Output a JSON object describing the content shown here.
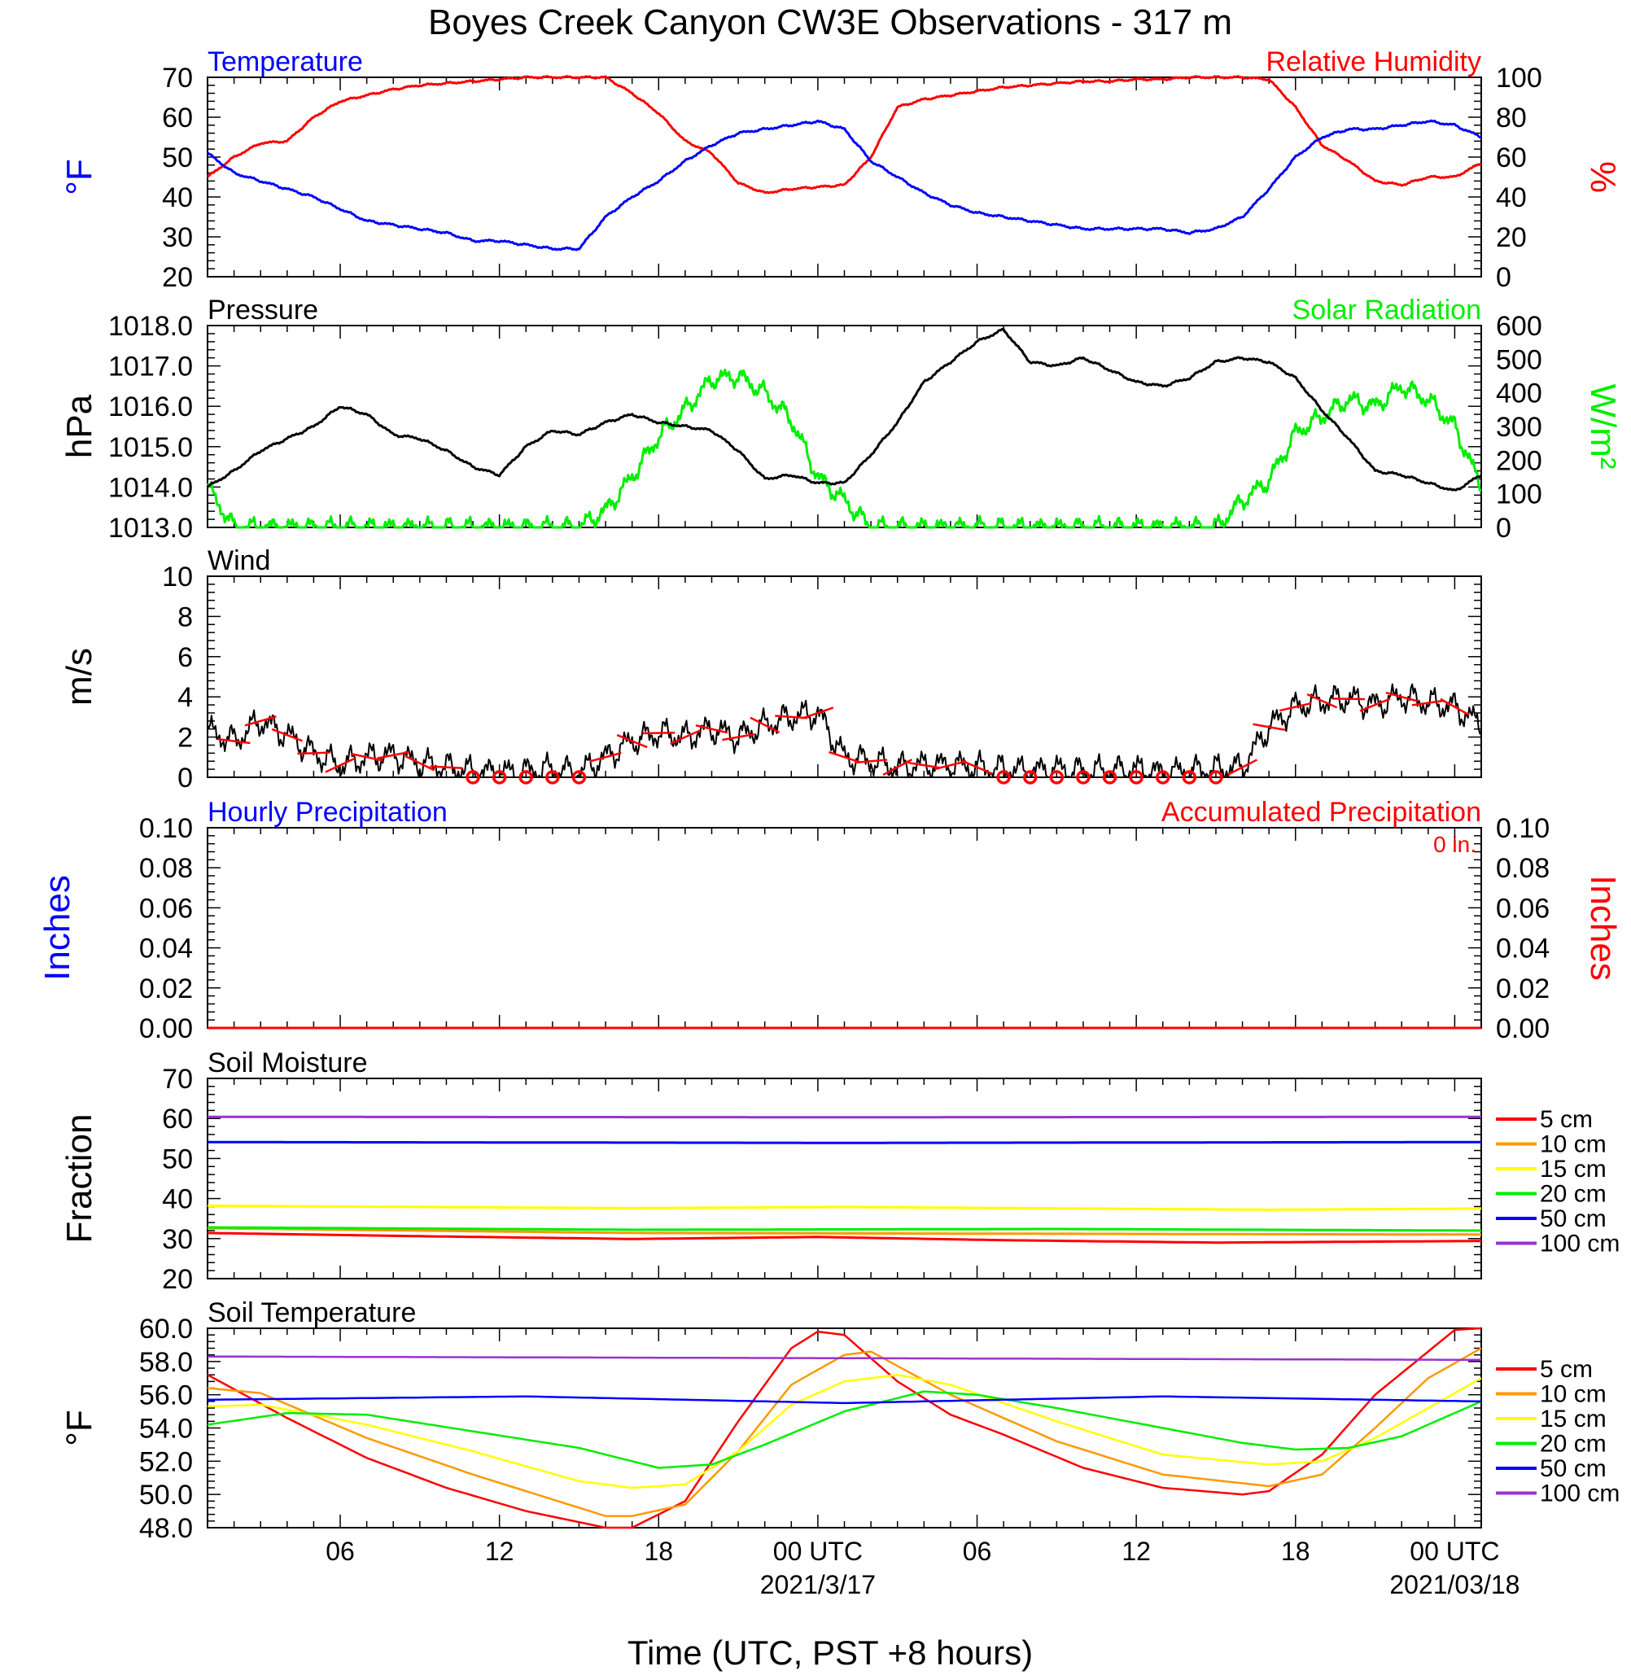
{
  "title": "Boyes Creek Canyon CW3E Observations - 317 m",
  "x_axis": {
    "label": "Time (UTC, PST +8 hours)",
    "range_hours": [
      0,
      48
    ],
    "ticks": [
      {
        "hours": 5,
        "label": "06",
        "date": ""
      },
      {
        "hours": 11,
        "label": "12",
        "date": ""
      },
      {
        "hours": 17,
        "label": "18",
        "date": ""
      },
      {
        "hours": 23,
        "label": "00 UTC",
        "date": "2021/3/17"
      },
      {
        "hours": 29,
        "label": "06",
        "date": ""
      },
      {
        "hours": 35,
        "label": "12",
        "date": ""
      },
      {
        "hours": 41,
        "label": "18",
        "date": ""
      },
      {
        "hours": 47,
        "label": "00 UTC",
        "date": "2021/03/18"
      }
    ]
  },
  "panels": {
    "temp_rh": {
      "left_title": "Temperature",
      "right_title": "Relative Humidity",
      "left_unit": "°F",
      "right_unit": "%",
      "left_ticks": [
        "70",
        "60",
        "50",
        "40",
        "30",
        "20"
      ],
      "right_ticks": [
        "100",
        "80",
        "60",
        "40",
        "20",
        "0"
      ]
    },
    "pressure_solar": {
      "left_title": "Pressure",
      "right_title": "Solar Radiation",
      "left_unit": "hPa",
      "right_unit": "W/m²",
      "left_ticks": [
        "1018.0",
        "1017.0",
        "1016.0",
        "1015.0",
        "1014.0",
        "1013.0"
      ],
      "right_ticks": [
        "600",
        "500",
        "400",
        "300",
        "200",
        "100",
        "0"
      ]
    },
    "wind": {
      "left_title": "Wind",
      "left_unit": "m/s",
      "left_ticks": [
        "10",
        "8",
        "6",
        "4",
        "2",
        "0"
      ]
    },
    "precip": {
      "left_title": "Hourly Precipitation",
      "right_title": "Accumulated Precipitation",
      "left_unit": "Inches",
      "right_unit": "Inches",
      "total_label": "0 in.",
      "left_ticks": [
        "0.10",
        "0.08",
        "0.06",
        "0.04",
        "0.02",
        "0.00"
      ],
      "right_ticks": [
        "0.10",
        "0.08",
        "0.06",
        "0.04",
        "0.02",
        "0.00"
      ]
    },
    "soil_moisture": {
      "left_title": "Soil Moisture",
      "left_unit": "Fraction",
      "left_ticks": [
        "70",
        "60",
        "50",
        "40",
        "30",
        "20"
      ],
      "legend": [
        "5 cm",
        "10 cm",
        "15 cm",
        "20 cm",
        "50 cm",
        "100 cm"
      ]
    },
    "soil_temp": {
      "left_title": "Soil Temperature",
      "left_unit": "°F",
      "left_ticks": [
        "60.0",
        "58.0",
        "56.0",
        "54.0",
        "52.0",
        "50.0",
        "48.0"
      ],
      "legend": [
        "5 cm",
        "10 cm",
        "15 cm",
        "20 cm",
        "50 cm",
        "100 cm"
      ]
    }
  },
  "colors": {
    "temperature": "#0000ff",
    "humidity": "#ff0000",
    "pressure": "#000000",
    "solar": "#00ee00",
    "wind": "#000000",
    "wind_barb": "#ff0000",
    "depth_5": "#ff0000",
    "depth_10": "#ff9900",
    "depth_15": "#ffff00",
    "depth_20": "#00ee00",
    "depth_50": "#0000ff",
    "depth_100": "#9933cc"
  },
  "chart_data": [
    {
      "type": "line",
      "title": "Temperature",
      "ylabel": "°F",
      "ylim": [
        20,
        70
      ],
      "series": [
        {
          "name": "Temperature",
          "axis": "left",
          "x": [
            0,
            1,
            2,
            3,
            4,
            5,
            6,
            7,
            8,
            9,
            10,
            11,
            12,
            13,
            14,
            15,
            16,
            17,
            18,
            19,
            20,
            21,
            22,
            23,
            24,
            25,
            26,
            27,
            28,
            29,
            30,
            31,
            32,
            33,
            34,
            35,
            36,
            37,
            38,
            39,
            40,
            41,
            42,
            43,
            44,
            45,
            46,
            47,
            48
          ],
          "values": [
            51,
            46,
            44,
            42,
            40,
            37,
            34,
            33,
            32,
            31,
            29,
            29,
            28,
            27,
            27,
            35,
            40,
            44,
            49,
            53,
            56,
            57,
            58,
            59,
            57,
            49,
            45,
            41,
            38,
            36,
            35,
            34,
            33,
            32,
            32,
            32,
            32,
            31,
            32,
            35,
            42,
            50,
            55,
            57,
            57,
            58,
            59,
            58,
            55
          ]
        }
      ]
    },
    {
      "type": "line",
      "title": "Relative Humidity",
      "ylabel": "%",
      "ylim": [
        0,
        100
      ],
      "series": [
        {
          "name": "Relative Humidity",
          "axis": "right",
          "x": [
            0,
            1,
            2,
            3,
            4,
            5,
            6,
            7,
            8,
            9,
            10,
            11,
            12,
            13,
            14,
            15,
            16,
            17,
            18,
            19,
            20,
            21,
            22,
            23,
            24,
            25,
            26,
            27,
            28,
            29,
            30,
            31,
            32,
            33,
            34,
            35,
            36,
            37,
            38,
            39,
            40,
            41,
            42,
            43,
            44,
            45,
            46,
            47,
            48
          ],
          "values": [
            50,
            60,
            67,
            68,
            80,
            88,
            91,
            94,
            96,
            97,
            98,
            99,
            100,
            100,
            100,
            100,
            92,
            82,
            68,
            62,
            47,
            42,
            44,
            45,
            46,
            60,
            85,
            89,
            91,
            93,
            95,
            96,
            97,
            98,
            98,
            99,
            99,
            100,
            100,
            100,
            99,
            85,
            66,
            58,
            48,
            46,
            50,
            50,
            57
          ]
        }
      ]
    },
    {
      "type": "line",
      "title": "Pressure",
      "ylabel": "hPa",
      "ylim": [
        1013,
        1018
      ],
      "series": [
        {
          "name": "Pressure",
          "axis": "left",
          "x": [
            0,
            1,
            2,
            3,
            4,
            5,
            6,
            7,
            8,
            9,
            10,
            11,
            12,
            13,
            14,
            15,
            16,
            17,
            18,
            19,
            20,
            21,
            22,
            23,
            24,
            25,
            26,
            27,
            28,
            29,
            30,
            31,
            32,
            33,
            34,
            35,
            36,
            37,
            38,
            39,
            40,
            41,
            42,
            43,
            44,
            45,
            46,
            47,
            48
          ],
          "values": [
            1014.0,
            1014.4,
            1014.9,
            1015.2,
            1015.5,
            1016.0,
            1015.8,
            1015.3,
            1015.2,
            1014.9,
            1014.5,
            1014.3,
            1015.0,
            1015.4,
            1015.3,
            1015.6,
            1015.8,
            1015.6,
            1015.5,
            1015.4,
            1014.9,
            1014.2,
            1014.3,
            1014.1,
            1014.1,
            1014.8,
            1015.6,
            1016.6,
            1017.1,
            1017.6,
            1017.9,
            1017.1,
            1017.0,
            1017.2,
            1016.9,
            1016.6,
            1016.5,
            1016.7,
            1017.1,
            1017.2,
            1017.1,
            1016.7,
            1015.9,
            1015.2,
            1014.4,
            1014.3,
            1014.1,
            1013.9,
            1014.3
          ]
        }
      ]
    },
    {
      "type": "line",
      "title": "Solar Radiation",
      "ylabel": "W/m²",
      "ylim": [
        0,
        600
      ],
      "series": [
        {
          "name": "Solar Radiation",
          "axis": "right",
          "x": [
            0,
            1,
            2,
            3,
            4,
            5,
            6,
            7,
            8,
            9,
            10,
            11,
            12,
            13,
            14,
            15,
            16,
            17,
            18,
            19,
            20,
            21,
            22,
            23,
            24,
            25,
            26,
            27,
            28,
            29,
            30,
            31,
            32,
            33,
            34,
            35,
            36,
            37,
            38,
            39,
            40,
            41,
            42,
            43,
            44,
            45,
            46,
            47,
            48
          ],
          "values": [
            120,
            0,
            0,
            0,
            0,
            0,
            0,
            0,
            0,
            0,
            0,
            0,
            0,
            0,
            0,
            50,
            150,
            270,
            350,
            440,
            450,
            400,
            320,
            150,
            80,
            0,
            0,
            0,
            0,
            0,
            0,
            0,
            0,
            0,
            0,
            0,
            0,
            0,
            0,
            80,
            140,
            280,
            330,
            380,
            360,
            420,
            380,
            300,
            120
          ]
        }
      ]
    },
    {
      "type": "line",
      "title": "Wind",
      "ylabel": "m/s",
      "ylim": [
        0,
        10
      ],
      "series": [
        {
          "name": "Wind speed",
          "x": [
            0,
            1,
            2,
            3,
            4,
            5,
            6,
            7,
            8,
            9,
            10,
            11,
            12,
            13,
            14,
            15,
            16,
            17,
            18,
            19,
            20,
            21,
            22,
            23,
            24,
            25,
            26,
            27,
            28,
            29,
            30,
            31,
            32,
            33,
            34,
            35,
            36,
            37,
            38,
            39,
            40,
            41,
            42,
            43,
            44,
            45,
            46,
            47,
            48
          ],
          "values": [
            2.3,
            1.8,
            2.8,
            2.1,
            1.2,
            0.6,
            1.0,
            1.1,
            0.7,
            0.5,
            0.3,
            0.2,
            0.3,
            0.4,
            0.2,
            1.0,
            1.8,
            2.2,
            2.0,
            2.4,
            2.0,
            2.6,
            3.0,
            3.2,
            1.0,
            0.8,
            0.5,
            0.6,
            0.6,
            0.5,
            0.4,
            0.3,
            0.4,
            0.3,
            0.3,
            0.4,
            0.2,
            0.3,
            0.4,
            0.5,
            2.5,
            3.5,
            3.8,
            3.9,
            3.6,
            4.0,
            3.7,
            3.5,
            2.6
          ]
        }
      ]
    },
    {
      "type": "line",
      "title": "Hourly Precipitation",
      "ylabel": "Inches",
      "ylim": [
        0,
        0.1
      ],
      "series": [
        {
          "name": "Hourly Precipitation",
          "x": [
            0,
            48
          ],
          "values": [
            0,
            0
          ]
        },
        {
          "name": "Accumulated Precipitation",
          "x": [
            0,
            48
          ],
          "values": [
            0,
            0
          ]
        }
      ]
    },
    {
      "type": "line",
      "title": "Soil Moisture",
      "ylabel": "Fraction",
      "ylim": [
        20,
        70
      ],
      "series": [
        {
          "name": "5 cm",
          "x": [
            0,
            8,
            16,
            23,
            30,
            38,
            48
          ],
          "values": [
            31.4,
            30.6,
            29.9,
            30.4,
            29.6,
            29.0,
            29.4
          ]
        },
        {
          "name": "10 cm",
          "x": [
            0,
            16,
            32,
            48
          ],
          "values": [
            32.6,
            31.4,
            31.2,
            31.0
          ]
        },
        {
          "name": "15 cm",
          "x": [
            0,
            16,
            24,
            40,
            48
          ],
          "values": [
            38.2,
            37.6,
            37.9,
            37.2,
            37.5
          ]
        },
        {
          "name": "20 cm",
          "x": [
            0,
            16,
            32,
            48
          ],
          "values": [
            32.8,
            32.2,
            32.4,
            32.0
          ]
        },
        {
          "name": "50 cm",
          "x": [
            0,
            24,
            48
          ],
          "values": [
            54.1,
            53.9,
            54.1
          ]
        },
        {
          "name": "100 cm",
          "x": [
            0,
            24,
            48
          ],
          "values": [
            60.4,
            60.3,
            60.4
          ]
        }
      ]
    },
    {
      "type": "line",
      "title": "Soil Temperature",
      "ylabel": "°F",
      "ylim": [
        48,
        60
      ],
      "series": [
        {
          "name": "5 cm",
          "x": [
            0,
            3,
            6,
            9,
            12,
            15,
            16,
            18,
            20,
            22,
            23,
            24,
            26,
            28,
            30,
            33,
            36,
            39,
            40,
            42,
            44,
            46,
            47,
            48
          ],
          "values": [
            57.2,
            54.6,
            52.2,
            50.4,
            49.0,
            48.0,
            48.0,
            49.6,
            54.4,
            58.8,
            59.8,
            59.6,
            56.8,
            54.8,
            53.6,
            51.6,
            50.4,
            50.0,
            50.2,
            52.4,
            56.0,
            58.6,
            59.9,
            60.0
          ]
        },
        {
          "name": "10 cm",
          "x": [
            0,
            2,
            6,
            10,
            15,
            16,
            18,
            20,
            22,
            24,
            25,
            28,
            32,
            36,
            40,
            42,
            44,
            46,
            48
          ],
          "values": [
            56.4,
            56.1,
            53.4,
            51.2,
            48.7,
            48.7,
            49.4,
            52.6,
            56.6,
            58.4,
            58.6,
            56.0,
            53.2,
            51.2,
            50.5,
            51.2,
            54.0,
            57.0,
            58.8
          ]
        },
        {
          "name": "15 cm",
          "x": [
            0,
            2,
            6,
            10,
            14,
            16,
            18,
            20,
            22,
            24,
            26,
            28,
            32,
            36,
            40,
            42,
            44,
            46,
            48
          ],
          "values": [
            55.3,
            55.4,
            54.2,
            52.6,
            50.8,
            50.4,
            50.6,
            52.6,
            55.4,
            56.8,
            57.2,
            56.6,
            54.4,
            52.4,
            51.8,
            52.0,
            53.4,
            55.2,
            57.0
          ]
        },
        {
          "name": "20 cm",
          "x": [
            0,
            3,
            6,
            10,
            14,
            17,
            19,
            21,
            24,
            27,
            29,
            32,
            36,
            39,
            41,
            43,
            45,
            48
          ],
          "values": [
            54.2,
            54.9,
            54.8,
            53.8,
            52.8,
            51.6,
            51.8,
            53.0,
            55.0,
            56.2,
            56.0,
            55.2,
            54.0,
            53.1,
            52.7,
            52.8,
            53.5,
            55.6
          ]
        },
        {
          "name": "50 cm",
          "x": [
            0,
            12,
            24,
            36,
            48
          ],
          "values": [
            55.7,
            55.9,
            55.5,
            55.9,
            55.6
          ]
        },
        {
          "name": "100 cm",
          "x": [
            0,
            24,
            48
          ],
          "values": [
            58.3,
            58.2,
            58.1
          ]
        }
      ]
    }
  ]
}
